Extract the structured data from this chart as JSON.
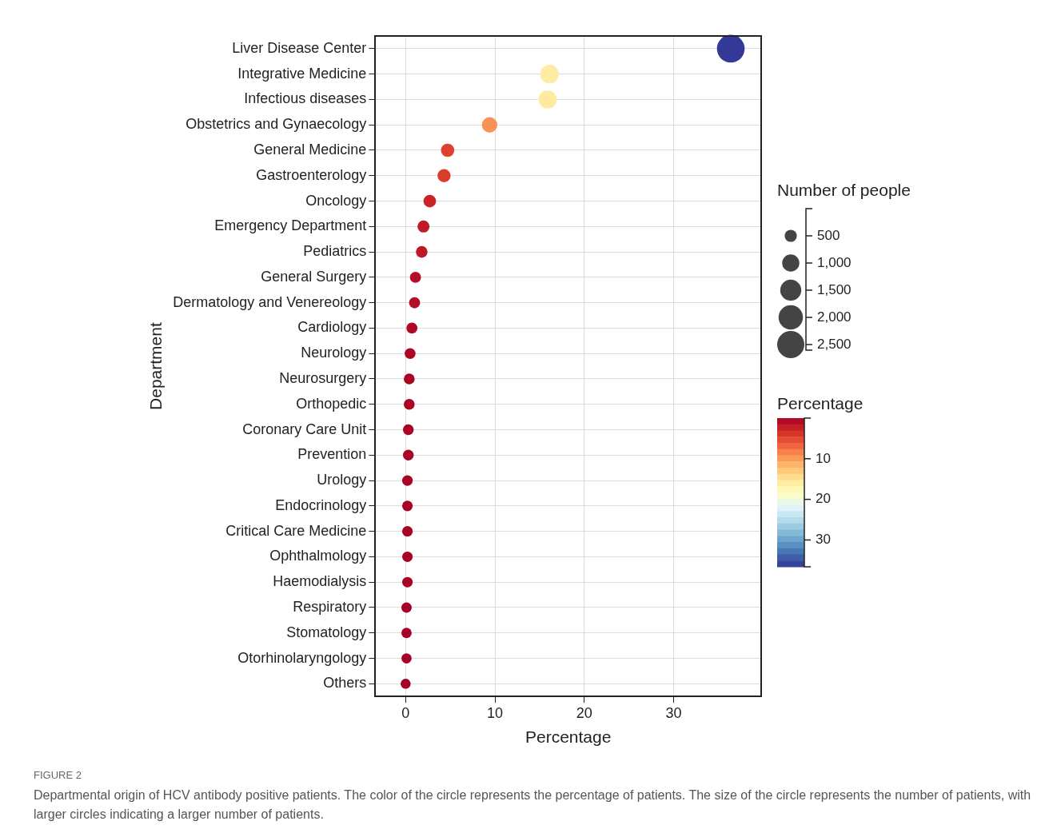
{
  "chart_data": {
    "type": "bubble",
    "orientation": "horizontal",
    "xlabel": "Percentage",
    "ylabel": "Department",
    "categories": [
      "Liver Disease Center",
      "Integrative Medicine",
      "Infectious diseases",
      "Obstetrics and Gynaecology",
      "General Medicine",
      "Gastroenterology",
      "Oncology",
      "Emergency Department",
      "Pediatrics",
      "General Surgery",
      "Dermatology and Venereology",
      "Cardiology",
      "Neurology",
      "Neurosurgery",
      "Orthopedic",
      "Coronary Care Unit",
      "Prevention",
      "Urology",
      "Endocrinology",
      "Critical Care Medicine",
      "Ophthalmology",
      "Haemodialysis",
      "Respiratory",
      "Stomatology",
      "Otorhinolaryngology",
      "Others"
    ],
    "values": [
      36.4,
      16.1,
      15.9,
      9.4,
      4.7,
      4.3,
      2.7,
      2.0,
      1.8,
      1.1,
      1.0,
      0.7,
      0.5,
      0.4,
      0.4,
      0.3,
      0.3,
      0.2,
      0.2,
      0.2,
      0.2,
      0.2,
      0.1,
      0.1,
      0.1,
      0.0
    ],
    "sizes": [
      2600,
      1180,
      1100,
      810,
      600,
      580,
      530,
      490,
      460,
      420,
      420,
      410,
      400,
      400,
      400,
      390,
      390,
      380,
      380,
      380,
      370,
      370,
      360,
      360,
      350,
      340
    ],
    "cvalues": [
      36.4,
      16.1,
      15.9,
      9.4,
      4.7,
      4.3,
      2.7,
      2.0,
      1.8,
      1.1,
      1.0,
      0.7,
      0.5,
      0.4,
      0.4,
      0.3,
      0.3,
      0.2,
      0.2,
      0.2,
      0.2,
      0.2,
      0.1,
      0.1,
      0.1,
      0.0
    ],
    "size_legend": [
      500,
      {
        "value": 1000,
        "label": "1,000"
      },
      {
        "value": 1500,
        "label": "1,500"
      },
      {
        "value": 2000,
        "label": "2,000"
      },
      {
        "value": 2500,
        "label": "2,500"
      }
    ],
    "legend_title": "Number of people",
    "clabel": "Percentage",
    "clim": [
      0,
      36.6
    ],
    "cticks": [
      10,
      20,
      30
    ],
    "xlim": [
      -3.4,
      39.8
    ],
    "xticks": [
      0,
      10,
      20,
      30
    ],
    "grid": true,
    "annotations": [
      "FIGURE 2",
      "Departmental origin of HCV antibody positive patients. The color of the circle represents the percentage of patients. The size of the circle represents the number of patients, with larger circles indicating a larger number of patients."
    ]
  }
}
